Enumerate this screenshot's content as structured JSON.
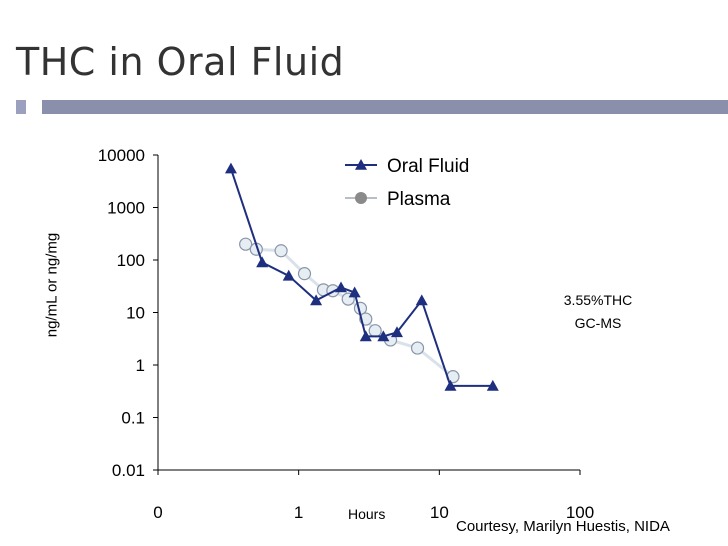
{
  "slide": {
    "title": "THC in Oral Fluid",
    "annotation_line1": "3.55%THC",
    "annotation_line2": "GC-MS",
    "credit": "Courtesy, Marilyn Huestis, NIDA"
  },
  "chart_data": {
    "type": "line",
    "title": "",
    "xlabel": "Hours",
    "ylabel": "ng/mL or ng/mg",
    "x_scale": "log",
    "y_scale": "log",
    "xlim": [
      0.1,
      100
    ],
    "ylim": [
      0.01,
      10000
    ],
    "x_tick_labels": [
      "0",
      "1",
      "10",
      "100"
    ],
    "x_tick_values": [
      0.1,
      1,
      10,
      100
    ],
    "y_tick_labels": [
      "10000",
      "1000",
      "100",
      "10",
      "1",
      "0.1",
      "0.01"
    ],
    "y_tick_values": [
      10000,
      1000,
      100,
      10,
      1,
      0.1,
      0.01
    ],
    "legend_position": "top-center",
    "series": [
      {
        "name": "Oral Fluid",
        "marker": "triangle",
        "color": "#1f2f80",
        "x": [
          0.33,
          0.55,
          0.85,
          1.33,
          2.0,
          2.5,
          3.0,
          4.0,
          5.0,
          7.5,
          12.0,
          24.0
        ],
        "y": [
          5500,
          90,
          50,
          17,
          30,
          24,
          3.5,
          3.5,
          4.2,
          17,
          0.4,
          0.4
        ]
      },
      {
        "name": "Plasma",
        "marker": "circle",
        "color": "#d7e1ea",
        "x": [
          0.42,
          0.5,
          0.75,
          1.1,
          1.5,
          1.75,
          2.25,
          2.75,
          3.0,
          3.5,
          4.5,
          7.0,
          12.5
        ],
        "y": [
          200,
          160,
          150,
          55,
          27,
          26,
          18,
          12,
          7.5,
          4.5,
          3.0,
          2.1,
          0.6
        ]
      }
    ]
  }
}
